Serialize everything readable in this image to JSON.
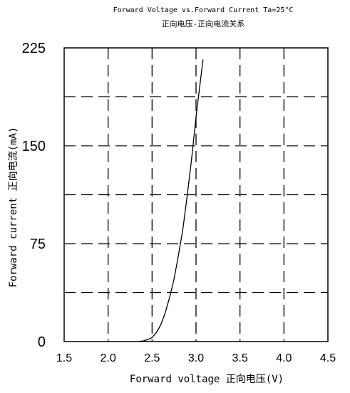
{
  "chart_data": {
    "type": "line",
    "title": "Forward Voltage vs.Forward Current Ta=25°C",
    "subtitle": "正向电压-正向电流关系",
    "xlabel": "Forward voltage 正向电压(V)",
    "ylabel": "Forward current 正向电流(mA)",
    "xlim": [
      1.5,
      4.5
    ],
    "ylim": [
      0,
      225
    ],
    "x_ticks": [
      "1.5",
      "2.0",
      "2.5",
      "3.0",
      "3.5",
      "4.0",
      "4.5"
    ],
    "y_ticks": [
      "0",
      "75",
      "150",
      "225"
    ],
    "grid": true,
    "series": [
      {
        "x": [
          2.33,
          2.4,
          2.45,
          2.5,
          2.55,
          2.6,
          2.65,
          2.7,
          2.75,
          2.8,
          2.85,
          2.9,
          2.95,
          3.0,
          3.05,
          3.08
        ],
        "y": [
          0,
          0.5,
          1.5,
          3,
          7,
          13,
          22,
          34,
          48,
          66,
          86,
          112,
          140,
          172,
          200,
          216
        ]
      }
    ]
  }
}
